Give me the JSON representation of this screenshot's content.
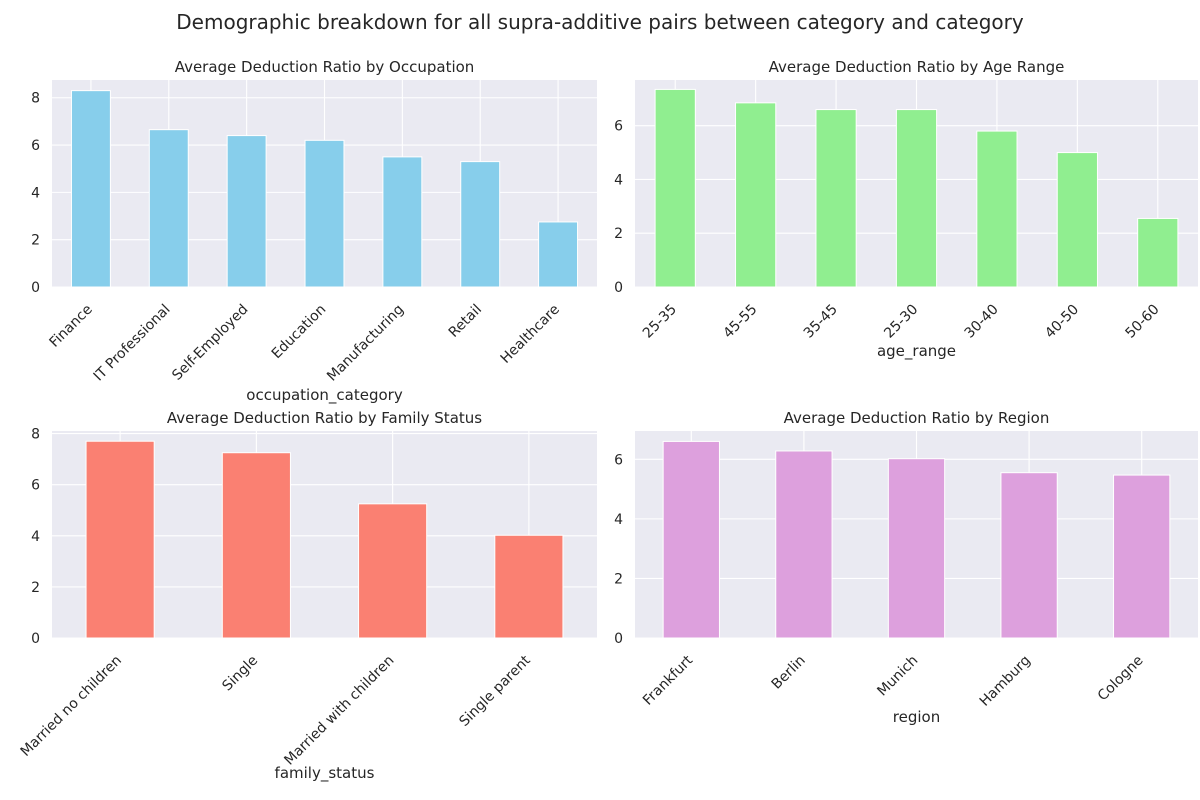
{
  "figure": {
    "suptitle": "Demographic breakdown for all supra-additive pairs between category and category",
    "background": "#ffffff",
    "axes_facecolor": "#eaeaf2",
    "grid_color": "#ffffff",
    "text_color": "#262626"
  },
  "chart_data": [
    {
      "type": "bar",
      "title": "Average Deduction Ratio by Occupation",
      "xlabel": "occupation_category",
      "ylabel": "",
      "categories": [
        "Finance",
        "IT Professional",
        "Self-Employed",
        "Education",
        "Manufacturing",
        "Retail",
        "Healthcare"
      ],
      "values": [
        8.3,
        6.65,
        6.4,
        6.2,
        5.5,
        5.3,
        2.75
      ],
      "ylim": [
        0,
        8.75
      ],
      "yticks": [
        0,
        2,
        4,
        6,
        8
      ],
      "color": "#87ceeb",
      "grid": true
    },
    {
      "type": "bar",
      "title": "Average Deduction Ratio by Age Range",
      "xlabel": "age_range",
      "ylabel": "",
      "categories": [
        "25-35",
        "45-55",
        "35-45",
        "25-30",
        "30-40",
        "40-50",
        "50-60"
      ],
      "values": [
        7.35,
        6.85,
        6.6,
        6.6,
        5.8,
        5.0,
        2.55
      ],
      "ylim": [
        0,
        7.7
      ],
      "yticks": [
        0,
        2,
        4,
        6
      ],
      "color": "#90ee90",
      "grid": true
    },
    {
      "type": "bar",
      "title": "Average Deduction Ratio by Family Status",
      "xlabel": "family_status",
      "ylabel": "",
      "categories": [
        "Married no children",
        "Single",
        "Married with children",
        "Single parent"
      ],
      "values": [
        7.7,
        7.25,
        5.25,
        4.02
      ],
      "ylim": [
        0,
        8.1
      ],
      "yticks": [
        0,
        2,
        4,
        6,
        8
      ],
      "color": "#fa8072",
      "grid": true
    },
    {
      "type": "bar",
      "title": "Average Deduction Ratio by Region",
      "xlabel": "region",
      "ylabel": "",
      "categories": [
        "Frankfurt",
        "Berlin",
        "Munich",
        "Hamburg",
        "Cologne"
      ],
      "values": [
        6.6,
        6.28,
        6.02,
        5.55,
        5.47
      ],
      "ylim": [
        0,
        6.95
      ],
      "yticks": [
        0,
        2,
        4,
        6
      ],
      "color": "#dda0dd",
      "grid": true
    }
  ]
}
